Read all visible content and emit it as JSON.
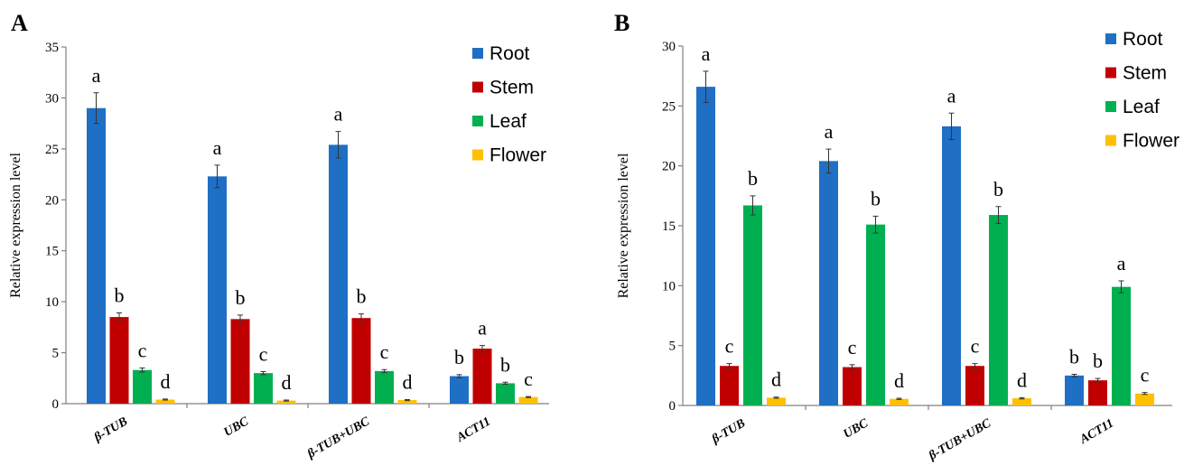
{
  "colors": {
    "Root": "#1f6fc4",
    "Stem": "#c00000",
    "Leaf": "#00b050",
    "Flower": "#ffc000"
  },
  "chart_data": [
    {
      "panel": "A",
      "type": "bar",
      "ylabel": "Relative expression level",
      "ylim": [
        0,
        35
      ],
      "yticks": [
        0,
        5,
        10,
        15,
        20,
        25,
        30,
        35
      ],
      "categories": [
        "β-TUB",
        "UBC",
        "β-TUB+UBC",
        "ACT11"
      ],
      "legend": "top-right",
      "series": [
        {
          "name": "Root",
          "values": [
            29.0,
            22.3,
            25.4,
            2.7
          ],
          "errors": [
            1.5,
            1.1,
            1.3,
            0.15
          ],
          "letters": [
            "a",
            "a",
            "a",
            "b"
          ]
        },
        {
          "name": "Stem",
          "values": [
            8.5,
            8.3,
            8.4,
            5.4
          ],
          "errors": [
            0.4,
            0.4,
            0.4,
            0.3
          ],
          "letters": [
            "b",
            "b",
            "b",
            "a"
          ]
        },
        {
          "name": "Leaf",
          "values": [
            3.3,
            3.0,
            3.2,
            2.0
          ],
          "errors": [
            0.2,
            0.15,
            0.15,
            0.1
          ],
          "letters": [
            "c",
            "c",
            "c",
            "b"
          ]
        },
        {
          "name": "Flower",
          "values": [
            0.4,
            0.3,
            0.35,
            0.65
          ],
          "errors": [
            0.05,
            0.05,
            0.05,
            0.05
          ],
          "letters": [
            "d",
            "d",
            "d",
            "c"
          ]
        }
      ]
    },
    {
      "panel": "B",
      "type": "bar",
      "ylabel": "Relative expression level",
      "ylim": [
        0,
        30
      ],
      "yticks": [
        0,
        5,
        10,
        15,
        20,
        25,
        30
      ],
      "categories": [
        "β-TUB",
        "UBC",
        "β-TUB+UBC",
        "ACT11"
      ],
      "legend": "top-right",
      "series": [
        {
          "name": "Root",
          "values": [
            26.6,
            20.4,
            23.3,
            2.5
          ],
          "errors": [
            1.3,
            1.0,
            1.1,
            0.1
          ],
          "letters": [
            "a",
            "a",
            "a",
            "b"
          ]
        },
        {
          "name": "Stem",
          "values": [
            3.3,
            3.2,
            3.3,
            2.1
          ],
          "errors": [
            0.2,
            0.2,
            0.2,
            0.15
          ],
          "letters": [
            "c",
            "c",
            "c",
            "b"
          ]
        },
        {
          "name": "Leaf",
          "values": [
            16.7,
            15.1,
            15.9,
            9.9
          ],
          "errors": [
            0.8,
            0.7,
            0.7,
            0.5
          ],
          "letters": [
            "b",
            "b",
            "b",
            "a"
          ]
        },
        {
          "name": "Flower",
          "values": [
            0.65,
            0.55,
            0.6,
            1.0
          ],
          "errors": [
            0.05,
            0.05,
            0.05,
            0.08
          ],
          "letters": [
            "d",
            "d",
            "d",
            "c"
          ]
        }
      ]
    }
  ]
}
